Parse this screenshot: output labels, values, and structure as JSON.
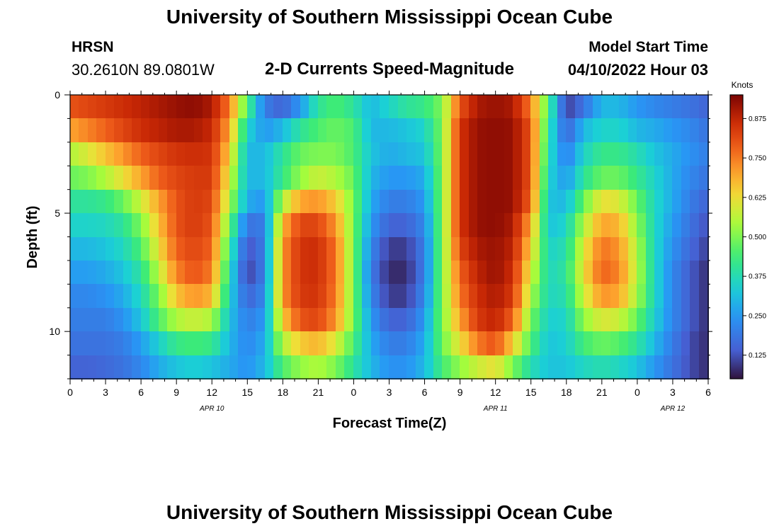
{
  "page": {
    "title": "University of Southern Mississippi Ocean Cube",
    "footer_title": "University of Southern Mississippi Ocean Cube"
  },
  "station": {
    "name": "HRSN",
    "coords": "30.2610N  89.0801W"
  },
  "model": {
    "label": "Model Start Time",
    "start": "04/10/2022 Hour 03"
  },
  "chart_data": {
    "type": "heatmap",
    "title": "2-D Currents Speed-Magnitude",
    "xlabel": "Forecast Time(Z)",
    "ylabel": "Depth (ft)",
    "x_tick_labels": [
      "0",
      "3",
      "6",
      "9",
      "12",
      "15",
      "18",
      "21",
      "0",
      "3",
      "6",
      "9",
      "12",
      "15",
      "18",
      "21",
      "0",
      "3",
      "6"
    ],
    "x_range_hours": [
      0,
      54
    ],
    "date_labels": [
      {
        "text": "APR 10",
        "hour": 12
      },
      {
        "text": "APR 11",
        "hour": 36
      },
      {
        "text": "APR 12",
        "hour": 51
      }
    ],
    "y_ticks": [
      0,
      5,
      10
    ],
    "y_range_ft": [
      0,
      12
    ],
    "colorbar": {
      "label": "Knots",
      "ticks": [
        "0.875",
        "0.750",
        "0.625",
        "0.500",
        "0.375",
        "0.250",
        "0.125"
      ],
      "range": [
        0.05,
        0.95
      ]
    },
    "depth_rows_ft": [
      0.5,
      1.5,
      2.5,
      3.5,
      4.5,
      5.5,
      6.5,
      7.5,
      8.5,
      9.5,
      10.5,
      11.5
    ],
    "time_columns_hours": [
      0,
      1.5,
      3,
      4.5,
      6,
      7.5,
      9,
      10.5,
      12,
      13.5,
      15,
      16.5,
      18,
      19.5,
      21,
      22.5,
      24,
      25.5,
      27,
      28.5,
      30,
      31.5,
      33,
      34.5,
      36,
      37.5,
      39,
      40.5,
      42,
      43.5,
      45,
      46.5,
      48,
      49.5,
      51,
      52.5,
      54
    ],
    "speed_knots": [
      [
        0.8,
        0.82,
        0.84,
        0.86,
        0.88,
        0.9,
        0.92,
        0.93,
        0.9,
        0.75,
        0.45,
        0.2,
        0.15,
        0.25,
        0.4,
        0.45,
        0.4,
        0.3,
        0.35,
        0.4,
        0.42,
        0.5,
        0.8,
        0.9,
        0.92,
        0.9,
        0.75,
        0.45,
        0.1,
        0.18,
        0.3,
        0.3,
        0.25,
        0.22,
        0.2,
        0.18,
        0.15
      ],
      [
        0.7,
        0.74,
        0.78,
        0.82,
        0.86,
        0.88,
        0.9,
        0.9,
        0.87,
        0.7,
        0.35,
        0.25,
        0.3,
        0.4,
        0.45,
        0.48,
        0.45,
        0.3,
        0.3,
        0.32,
        0.35,
        0.5,
        0.85,
        0.92,
        0.93,
        0.92,
        0.8,
        0.4,
        0.15,
        0.3,
        0.35,
        0.35,
        0.3,
        0.28,
        0.25,
        0.22,
        0.18
      ],
      [
        0.55,
        0.6,
        0.66,
        0.72,
        0.78,
        0.82,
        0.85,
        0.86,
        0.85,
        0.65,
        0.3,
        0.3,
        0.4,
        0.48,
        0.5,
        0.5,
        0.45,
        0.32,
        0.28,
        0.3,
        0.32,
        0.5,
        0.85,
        0.92,
        0.93,
        0.92,
        0.8,
        0.38,
        0.2,
        0.35,
        0.42,
        0.42,
        0.38,
        0.32,
        0.28,
        0.24,
        0.2
      ],
      [
        0.48,
        0.5,
        0.55,
        0.62,
        0.7,
        0.78,
        0.82,
        0.84,
        0.84,
        0.6,
        0.3,
        0.3,
        0.42,
        0.52,
        0.58,
        0.55,
        0.48,
        0.3,
        0.25,
        0.25,
        0.28,
        0.5,
        0.85,
        0.92,
        0.93,
        0.92,
        0.8,
        0.35,
        0.25,
        0.4,
        0.48,
        0.48,
        0.42,
        0.35,
        0.28,
        0.22,
        0.18
      ],
      [
        0.4,
        0.4,
        0.42,
        0.48,
        0.58,
        0.7,
        0.8,
        0.84,
        0.82,
        0.55,
        0.28,
        0.25,
        0.55,
        0.7,
        0.72,
        0.65,
        0.5,
        0.28,
        0.2,
        0.2,
        0.25,
        0.5,
        0.85,
        0.92,
        0.93,
        0.92,
        0.78,
        0.32,
        0.3,
        0.48,
        0.62,
        0.6,
        0.48,
        0.36,
        0.28,
        0.2,
        0.15
      ],
      [
        0.35,
        0.35,
        0.36,
        0.4,
        0.5,
        0.66,
        0.8,
        0.84,
        0.8,
        0.48,
        0.18,
        0.2,
        0.68,
        0.82,
        0.82,
        0.72,
        0.5,
        0.25,
        0.15,
        0.15,
        0.22,
        0.5,
        0.85,
        0.92,
        0.93,
        0.9,
        0.7,
        0.32,
        0.35,
        0.55,
        0.7,
        0.68,
        0.52,
        0.36,
        0.26,
        0.18,
        0.12
      ],
      [
        0.3,
        0.3,
        0.32,
        0.36,
        0.45,
        0.62,
        0.78,
        0.82,
        0.78,
        0.42,
        0.12,
        0.2,
        0.72,
        0.85,
        0.86,
        0.76,
        0.5,
        0.22,
        0.1,
        0.1,
        0.2,
        0.5,
        0.82,
        0.9,
        0.92,
        0.88,
        0.65,
        0.35,
        0.38,
        0.6,
        0.76,
        0.72,
        0.55,
        0.36,
        0.24,
        0.16,
        0.1
      ],
      [
        0.26,
        0.26,
        0.28,
        0.32,
        0.4,
        0.56,
        0.74,
        0.8,
        0.75,
        0.38,
        0.1,
        0.2,
        0.72,
        0.85,
        0.86,
        0.76,
        0.5,
        0.2,
        0.08,
        0.08,
        0.2,
        0.5,
        0.78,
        0.88,
        0.92,
        0.86,
        0.6,
        0.36,
        0.4,
        0.62,
        0.78,
        0.74,
        0.56,
        0.36,
        0.22,
        0.14,
        0.08
      ],
      [
        0.22,
        0.22,
        0.24,
        0.28,
        0.36,
        0.5,
        0.66,
        0.72,
        0.68,
        0.35,
        0.15,
        0.22,
        0.72,
        0.84,
        0.85,
        0.75,
        0.5,
        0.22,
        0.1,
        0.1,
        0.22,
        0.5,
        0.75,
        0.86,
        0.9,
        0.84,
        0.55,
        0.36,
        0.38,
        0.58,
        0.72,
        0.7,
        0.54,
        0.36,
        0.22,
        0.14,
        0.08
      ],
      [
        0.2,
        0.2,
        0.2,
        0.24,
        0.32,
        0.45,
        0.55,
        0.58,
        0.55,
        0.32,
        0.2,
        0.25,
        0.65,
        0.8,
        0.82,
        0.72,
        0.5,
        0.25,
        0.15,
        0.15,
        0.25,
        0.5,
        0.7,
        0.84,
        0.88,
        0.78,
        0.5,
        0.34,
        0.35,
        0.52,
        0.6,
        0.58,
        0.48,
        0.34,
        0.22,
        0.14,
        0.08
      ],
      [
        0.18,
        0.18,
        0.18,
        0.2,
        0.26,
        0.34,
        0.42,
        0.44,
        0.42,
        0.3,
        0.22,
        0.28,
        0.55,
        0.65,
        0.68,
        0.6,
        0.45,
        0.28,
        0.2,
        0.2,
        0.28,
        0.48,
        0.62,
        0.75,
        0.8,
        0.65,
        0.45,
        0.32,
        0.34,
        0.44,
        0.48,
        0.46,
        0.4,
        0.3,
        0.2,
        0.12,
        0.08
      ],
      [
        0.15,
        0.15,
        0.16,
        0.18,
        0.22,
        0.28,
        0.32,
        0.34,
        0.32,
        0.28,
        0.24,
        0.3,
        0.45,
        0.52,
        0.55,
        0.5,
        0.4,
        0.3,
        0.24,
        0.24,
        0.3,
        0.44,
        0.52,
        0.58,
        0.62,
        0.5,
        0.38,
        0.32,
        0.32,
        0.36,
        0.38,
        0.36,
        0.32,
        0.25,
        0.18,
        0.12,
        0.08
      ]
    ]
  }
}
